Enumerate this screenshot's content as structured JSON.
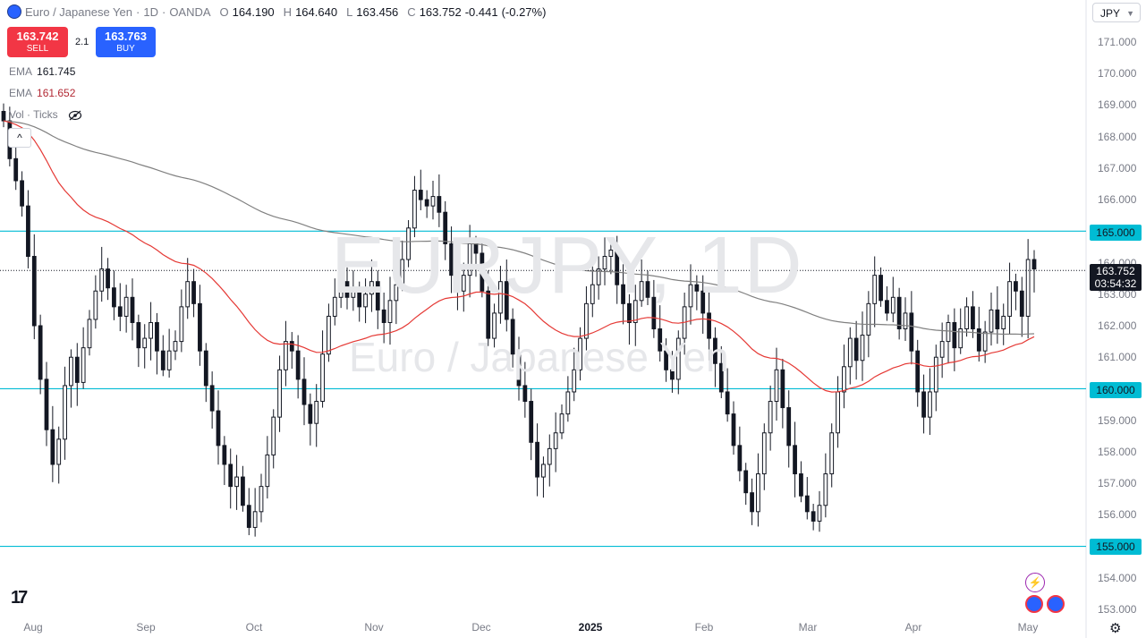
{
  "header": {
    "title": "Euro / Japanese Yen",
    "interval": "1D",
    "exchange": "OANDA",
    "open_label": "O",
    "open": "164.190",
    "high_label": "H",
    "high": "164.640",
    "low_label": "L",
    "low": "163.456",
    "close_label": "C",
    "close": "163.752",
    "change": "-0.441",
    "change_pct": "(-0.27%)"
  },
  "trade": {
    "sell_price": "163.742",
    "sell_label": "SELL",
    "spread": "2.1",
    "buy_price": "163.763",
    "buy_label": "BUY"
  },
  "indicators": {
    "ema1_label": "EMA",
    "ema1_value": "161.745",
    "ema2_label": "EMA",
    "ema2_value": "161.652",
    "vol_label": "Vol · Ticks"
  },
  "watermark": {
    "symbol": "EURJPY, 1D",
    "name": "Euro / Japanese Yen"
  },
  "currency_selector": "JPY",
  "price_axis": [
    "171.000",
    "170.000",
    "169.000",
    "168.000",
    "167.000",
    "166.000",
    "165.000",
    "164.000",
    "163.000",
    "162.000",
    "161.000",
    "160.000",
    "159.000",
    "158.000",
    "157.000",
    "156.000",
    "155.000",
    "154.000",
    "153.000"
  ],
  "time_axis": [
    {
      "label": "Aug",
      "year": false
    },
    {
      "label": "Sep",
      "year": false
    },
    {
      "label": "Oct",
      "year": false
    },
    {
      "label": "Nov",
      "year": false
    },
    {
      "label": "Dec",
      "year": false
    },
    {
      "label": "2025",
      "year": true
    },
    {
      "label": "Feb",
      "year": false
    },
    {
      "label": "Mar",
      "year": false
    },
    {
      "label": "Apr",
      "year": false
    },
    {
      "label": "May",
      "year": false
    }
  ],
  "levels": [
    "165.000",
    "160.000",
    "155.000"
  ],
  "current": {
    "price": "163.752",
    "countdown": "03:54:32"
  },
  "colors": {
    "up": "#131722",
    "down": "#131722",
    "level": "#00bcd4",
    "ema_fast": "#e53935",
    "ema_slow": "#808080",
    "sell": "#f23645",
    "buy": "#2962ff"
  },
  "chart_data": {
    "type": "candlestick",
    "ylim": [
      152.5,
      171.3
    ],
    "closes": [
      168.5,
      167.3,
      166.6,
      165.8,
      164.2,
      162.0,
      160.3,
      158.7,
      157.6,
      158.4,
      160.1,
      161.0,
      160.2,
      161.3,
      162.2,
      163.1,
      163.8,
      163.2,
      162.6,
      162.3,
      162.9,
      162.1,
      161.3,
      161.6,
      162.1,
      161.2,
      160.6,
      161.2,
      161.5,
      162.6,
      163.4,
      162.7,
      161.2,
      160.1,
      159.3,
      158.2,
      157.6,
      156.9,
      157.2,
      156.3,
      155.6,
      156.1,
      156.9,
      157.9,
      159.1,
      160.6,
      161.5,
      161.2,
      160.3,
      159.5,
      158.9,
      159.6,
      161.1,
      162.3,
      162.9,
      163.4,
      162.9,
      163.1,
      162.6,
      163.0,
      163.4,
      162.5,
      162.1,
      162.8,
      163.3,
      164.1,
      165.1,
      166.3,
      166.0,
      165.8,
      166.1,
      165.6,
      164.6,
      163.6,
      163.1,
      163.6,
      164.6,
      164.3,
      163.1,
      161.6,
      162.4,
      163.4,
      162.2,
      161.1,
      160.1,
      159.6,
      158.3,
      157.2,
      157.6,
      158.1,
      158.6,
      159.2,
      159.9,
      160.6,
      161.6,
      162.7,
      163.3,
      163.8,
      164.2,
      164.4,
      163.3,
      162.7,
      162.1,
      162.8,
      163.4,
      162.9,
      161.9,
      161.2,
      160.6,
      160.3,
      161.6,
      162.6,
      163.3,
      163.1,
      162.4,
      161.6,
      160.8,
      159.9,
      159.2,
      158.2,
      157.4,
      156.7,
      156.1,
      157.3,
      158.6,
      159.6,
      160.6,
      159.4,
      158.2,
      157.3,
      156.6,
      156.1,
      155.8,
      156.3,
      157.3,
      158.6,
      159.9,
      160.7,
      161.6,
      160.9,
      161.7,
      162.7,
      163.6,
      162.8,
      162.4,
      162.9,
      161.9,
      162.4,
      161.2,
      159.9,
      159.1,
      159.9,
      161.0,
      161.5,
      162.1,
      161.3,
      161.9,
      162.6,
      161.9,
      161.2,
      161.8,
      162.5,
      161.9,
      162.3,
      163.4,
      163.1,
      162.3,
      164.1,
      163.8
    ],
    "ema_fast_last": 161.652,
    "ema_slow_last": 161.745,
    "levels": [
      165.0,
      160.0,
      155.0
    ],
    "current_price": 163.752,
    "x_labels": [
      "Aug",
      "Sep",
      "Oct",
      "Nov",
      "Dec",
      "2025",
      "Feb",
      "Mar",
      "Apr",
      "May"
    ]
  }
}
